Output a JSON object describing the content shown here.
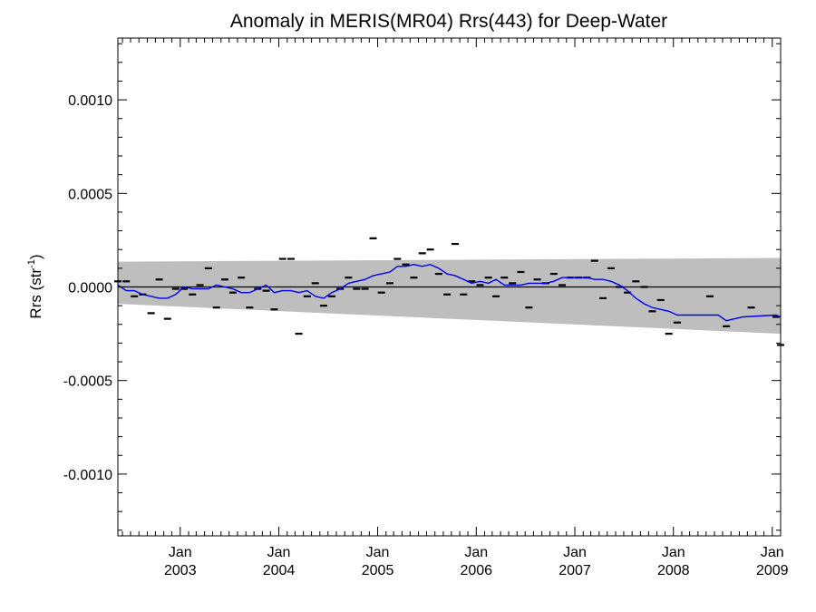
{
  "chart_data": {
    "type": "line",
    "title": "Anomaly in MERIS(MR04) Rrs(443) for Deep-Water",
    "ylabel_main": "Rrs (str",
    "ylabel_sup": "-1",
    "ylabel_end": ")",
    "xlim": [
      "2002-05-15",
      "2009-02-01"
    ],
    "ylim": [
      -0.00133,
      0.00133
    ],
    "yticks": [
      {
        "value": 0.001,
        "label": "0.0010"
      },
      {
        "value": 0.0005,
        "label": "0.0005"
      },
      {
        "value": 0.0,
        "label": "0.0000"
      },
      {
        "value": -0.0005,
        "label": "-0.0005"
      },
      {
        "value": -0.001,
        "label": "-0.0010"
      }
    ],
    "xticks": [
      {
        "date": "2003-01-01",
        "month": "Jan",
        "year": "2003"
      },
      {
        "date": "2004-01-01",
        "month": "Jan",
        "year": "2004"
      },
      {
        "date": "2005-01-01",
        "month": "Jan",
        "year": "2005"
      },
      {
        "date": "2006-01-01",
        "month": "Jan",
        "year": "2006"
      },
      {
        "date": "2007-01-01",
        "month": "Jan",
        "year": "2007"
      },
      {
        "date": "2008-01-01",
        "month": "Jan",
        "year": "2008"
      },
      {
        "date": "2009-01-01",
        "month": "Jan",
        "year": "2009"
      }
    ],
    "uncertainty_band": {
      "color": "#bebebe",
      "upper": [
        [
          "2002-05-15",
          0.000135
        ],
        [
          "2009-02-01",
          0.000155
        ]
      ],
      "lower": [
        [
          "2002-05-15",
          -9e-05
        ],
        [
          "2009-02-01",
          -0.00025
        ]
      ]
    },
    "zero_line": 0.0,
    "series": [
      {
        "style": "markers",
        "color": "#000000",
        "points": [
          [
            "2002-05-15",
            3e-05
          ],
          [
            "2002-06-15",
            3e-05
          ],
          [
            "2002-07-15",
            -5e-05
          ],
          [
            "2002-08-15",
            -4e-05
          ],
          [
            "2002-09-15",
            -0.00014
          ],
          [
            "2002-10-15",
            4e-05
          ],
          [
            "2002-11-15",
            -0.00017
          ],
          [
            "2002-12-15",
            -1e-05
          ],
          [
            "2003-01-15",
            -1e-05
          ],
          [
            "2003-02-15",
            -4e-05
          ],
          [
            "2003-03-15",
            1e-05
          ],
          [
            "2003-04-15",
            0.0001
          ],
          [
            "2003-05-15",
            -0.00011
          ],
          [
            "2003-06-15",
            4e-05
          ],
          [
            "2003-07-15",
            -3e-05
          ],
          [
            "2003-08-15",
            5e-05
          ],
          [
            "2003-09-15",
            -0.00011
          ],
          [
            "2003-10-15",
            -1e-05
          ],
          [
            "2003-11-15",
            -2e-05
          ],
          [
            "2003-12-15",
            -0.00012
          ],
          [
            "2004-01-15",
            0.00015
          ],
          [
            "2004-02-15",
            0.00015
          ],
          [
            "2004-03-15",
            -0.00025
          ],
          [
            "2004-04-15",
            -5e-05
          ],
          [
            "2004-05-15",
            2e-05
          ],
          [
            "2004-06-15",
            -0.0001
          ],
          [
            "2004-07-15",
            -5e-05
          ],
          [
            "2004-08-15",
            -1e-05
          ],
          [
            "2004-09-15",
            5e-05
          ],
          [
            "2004-10-15",
            -1e-05
          ],
          [
            "2004-11-15",
            -1e-05
          ],
          [
            "2004-12-15",
            0.00026
          ],
          [
            "2005-01-15",
            -3e-05
          ],
          [
            "2005-02-15",
            2e-05
          ],
          [
            "2005-03-15",
            0.00015
          ],
          [
            "2005-04-15",
            0.00012
          ],
          [
            "2005-05-15",
            5e-05
          ],
          [
            "2005-06-15",
            0.00018
          ],
          [
            "2005-07-15",
            0.0002
          ],
          [
            "2005-08-15",
            7e-05
          ],
          [
            "2005-09-15",
            -4e-05
          ],
          [
            "2005-10-15",
            0.00023
          ],
          [
            "2005-11-15",
            -4e-05
          ],
          [
            "2005-12-15",
            3e-05
          ],
          [
            "2006-01-15",
            1e-05
          ],
          [
            "2006-02-15",
            5e-05
          ],
          [
            "2006-03-15",
            -5e-05
          ],
          [
            "2006-04-15",
            5e-05
          ],
          [
            "2006-05-15",
            2e-05
          ],
          [
            "2006-06-15",
            8e-05
          ],
          [
            "2006-07-15",
            -0.00011
          ],
          [
            "2006-08-15",
            4e-05
          ],
          [
            "2006-09-15",
            2e-05
          ],
          [
            "2006-10-15",
            7e-05
          ],
          [
            "2006-11-15",
            1e-05
          ],
          [
            "2006-12-15",
            5e-05
          ],
          [
            "2007-01-15",
            5e-05
          ],
          [
            "2007-02-15",
            5e-05
          ],
          [
            "2007-03-15",
            0.00014
          ],
          [
            "2007-04-15",
            -6e-05
          ],
          [
            "2007-05-15",
            0.0001
          ],
          [
            "2007-06-15",
            0.0
          ],
          [
            "2007-07-15",
            -3e-05
          ],
          [
            "2007-08-15",
            3e-05
          ],
          [
            "2007-09-15",
            0.0
          ],
          [
            "2007-10-15",
            -0.00013
          ],
          [
            "2007-11-15",
            -7e-05
          ],
          [
            "2007-12-15",
            -0.00025
          ],
          [
            "2008-01-15",
            -0.00019
          ],
          [
            "2008-05-15",
            -5e-05
          ],
          [
            "2008-07-15",
            -0.00021
          ],
          [
            "2008-10-15",
            -0.00011
          ],
          [
            "2009-01-15",
            -0.00016
          ],
          [
            "2009-02-01",
            -0.00031
          ]
        ]
      },
      {
        "style": "line",
        "color": "#0000ee",
        "points": [
          [
            "2002-05-15",
            1e-05
          ],
          [
            "2002-06-15",
            -2e-05
          ],
          [
            "2002-07-15",
            -2e-05
          ],
          [
            "2002-08-15",
            -4e-05
          ],
          [
            "2002-09-15",
            -5e-05
          ],
          [
            "2002-10-15",
            -6e-05
          ],
          [
            "2002-11-15",
            -6e-05
          ],
          [
            "2002-12-15",
            -4e-05
          ],
          [
            "2003-01-15",
            0.0
          ],
          [
            "2003-02-15",
            -1e-05
          ],
          [
            "2003-03-15",
            -1e-05
          ],
          [
            "2003-04-15",
            -1e-05
          ],
          [
            "2003-05-15",
            1e-05
          ],
          [
            "2003-06-15",
            0.0
          ],
          [
            "2003-07-15",
            -1e-05
          ],
          [
            "2003-08-15",
            -3e-05
          ],
          [
            "2003-09-15",
            -3e-05
          ],
          [
            "2003-10-15",
            -1e-05
          ],
          [
            "2003-11-15",
            1e-05
          ],
          [
            "2003-12-15",
            -3e-05
          ],
          [
            "2004-01-15",
            -2e-05
          ],
          [
            "2004-02-15",
            -2e-05
          ],
          [
            "2004-03-15",
            -3e-05
          ],
          [
            "2004-04-15",
            -2e-05
          ],
          [
            "2004-05-15",
            -5e-05
          ],
          [
            "2004-06-15",
            -6e-05
          ],
          [
            "2004-07-15",
            -3e-05
          ],
          [
            "2004-08-15",
            -1e-05
          ],
          [
            "2004-09-15",
            2e-05
          ],
          [
            "2004-10-15",
            3e-05
          ],
          [
            "2004-11-15",
            4e-05
          ],
          [
            "2004-12-15",
            6e-05
          ],
          [
            "2005-01-15",
            7e-05
          ],
          [
            "2005-02-15",
            8e-05
          ],
          [
            "2005-03-15",
            0.00011
          ],
          [
            "2005-04-15",
            0.00011
          ],
          [
            "2005-05-15",
            0.00012
          ],
          [
            "2005-06-15",
            0.00011
          ],
          [
            "2005-07-15",
            0.00012
          ],
          [
            "2005-08-15",
            0.0001
          ],
          [
            "2005-09-15",
            7e-05
          ],
          [
            "2005-10-15",
            6e-05
          ],
          [
            "2005-11-15",
            4e-05
          ],
          [
            "2005-12-15",
            2e-05
          ],
          [
            "2006-01-15",
            3e-05
          ],
          [
            "2006-02-15",
            2e-05
          ],
          [
            "2006-03-15",
            4e-05
          ],
          [
            "2006-04-15",
            1e-05
          ],
          [
            "2006-05-15",
            1e-05
          ],
          [
            "2006-06-15",
            1e-05
          ],
          [
            "2006-07-15",
            2e-05
          ],
          [
            "2006-08-15",
            2e-05
          ],
          [
            "2006-09-15",
            2e-05
          ],
          [
            "2006-10-15",
            3e-05
          ],
          [
            "2006-11-15",
            5e-05
          ],
          [
            "2006-12-15",
            5e-05
          ],
          [
            "2007-01-15",
            5e-05
          ],
          [
            "2007-02-15",
            5e-05
          ],
          [
            "2007-03-15",
            4e-05
          ],
          [
            "2007-04-15",
            4e-05
          ],
          [
            "2007-05-15",
            3e-05
          ],
          [
            "2007-06-15",
            1e-05
          ],
          [
            "2007-07-15",
            -2e-05
          ],
          [
            "2007-08-15",
            -6e-05
          ],
          [
            "2007-09-15",
            -9e-05
          ],
          [
            "2007-10-15",
            -0.00011
          ],
          [
            "2007-11-15",
            -0.00012
          ],
          [
            "2007-12-15",
            -0.00013
          ],
          [
            "2008-01-15",
            -0.00015
          ],
          [
            "2008-06-15",
            -0.00015
          ],
          [
            "2008-07-15",
            -0.00018
          ],
          [
            "2008-09-15",
            -0.00016
          ],
          [
            "2009-01-15",
            -0.00015
          ],
          [
            "2009-02-01",
            -0.00016
          ]
        ]
      }
    ]
  }
}
